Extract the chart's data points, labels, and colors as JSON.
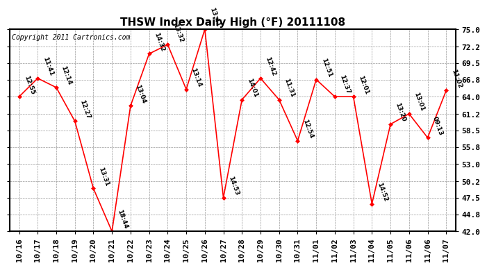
{
  "title": "THSW Index Daily High (°F) 20111108",
  "copyright": "Copyright 2011 Cartronics.com",
  "x_labels": [
    "10/16",
    "10/17",
    "10/18",
    "10/19",
    "10/20",
    "10/21",
    "10/22",
    "10/23",
    "10/24",
    "10/25",
    "10/26",
    "10/27",
    "10/28",
    "10/29",
    "10/30",
    "10/31",
    "11/01",
    "11/02",
    "11/03",
    "11/04",
    "11/05",
    "11/06",
    "11/06",
    "11/07"
  ],
  "y_values": [
    64.0,
    67.0,
    65.5,
    60.0,
    49.0,
    42.0,
    62.5,
    71.0,
    72.5,
    65.2,
    75.0,
    47.5,
    63.5,
    67.0,
    63.5,
    56.8,
    66.8,
    64.0,
    64.0,
    46.5,
    59.5,
    61.2,
    57.3,
    65.0
  ],
  "time_labels": [
    "12:55",
    "11:41",
    "12:14",
    "12:27",
    "13:31",
    "18:44",
    "13:04",
    "14:32",
    "13:32",
    "13:14",
    "13:41",
    "14:53",
    "14:01",
    "12:42",
    "11:31",
    "12:54",
    "12:51",
    "12:37",
    "12:01",
    "14:52",
    "13:20",
    "13:01",
    "09:13",
    "11:02"
  ],
  "ylim": [
    42.0,
    75.0
  ],
  "yticks": [
    42.0,
    44.8,
    47.5,
    50.2,
    53.0,
    55.8,
    58.5,
    61.2,
    64.0,
    66.8,
    69.5,
    72.2,
    75.0
  ],
  "line_color": "#ff0000",
  "marker_color": "#ff0000",
  "marker_style": "D",
  "marker_size": 3,
  "grid_color": "#999999",
  "bg_color": "#ffffff",
  "fig_bg_color": "#ffffff",
  "title_fontsize": 11,
  "label_fontsize": 6.5,
  "copyright_fontsize": 7,
  "tick_fontsize": 8
}
